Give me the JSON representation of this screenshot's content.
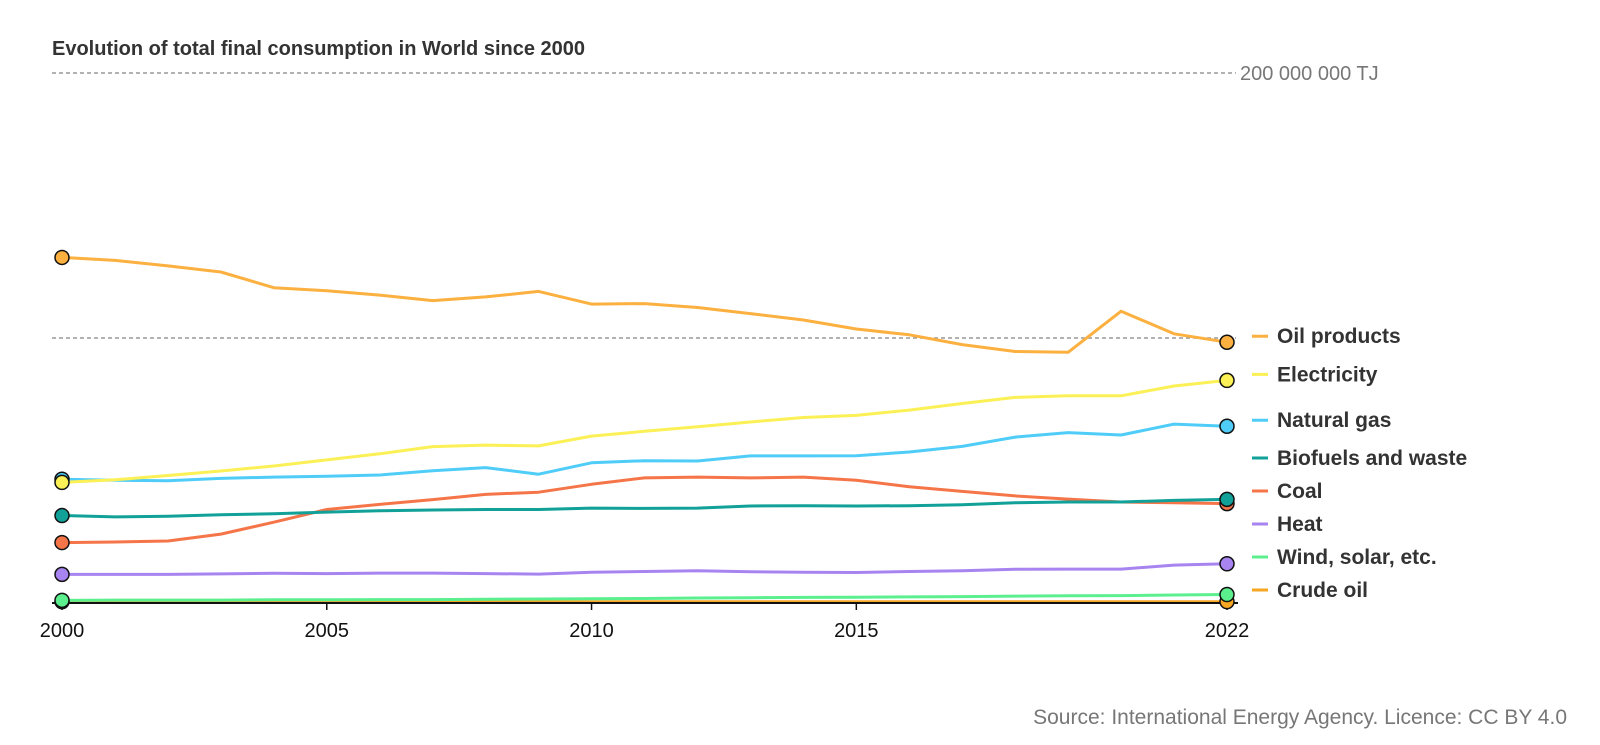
{
  "chart_data": {
    "type": "line",
    "title": "Evolution of total final consumption in World since 2000",
    "source": "Source: International Energy Agency. Licence: CC BY 4.0",
    "x": [
      2000,
      2001,
      2002,
      2003,
      2004,
      2005,
      2006,
      2007,
      2008,
      2009,
      2010,
      2011,
      2012,
      2013,
      2014,
      2015,
      2016,
      2017,
      2018,
      2019,
      2020,
      2021,
      2022
    ],
    "x_ticks": [
      "2000",
      "2005",
      "2010",
      "2015",
      "2022"
    ],
    "ylim": [
      0,
      200000000
    ],
    "grid_labels": [
      "200 000 000 TJ"
    ],
    "grid": true,
    "legend_placement": "right",
    "series": [
      {
        "name": "Oil products",
        "color": "#fbb040",
        "values": [
          130400000,
          129300000,
          127200000,
          124900000,
          119000000,
          117800000,
          116200000,
          114100000,
          115500000,
          117600000,
          112800000,
          113000000,
          111500000,
          109200000,
          106800000,
          103400000,
          101200000,
          97500000,
          94900000,
          94600000,
          110100000,
          101600000,
          98400000
        ]
      },
      {
        "name": "Electricity",
        "color": "#fbf055",
        "values": [
          45500000,
          46500000,
          48100000,
          49800000,
          51700000,
          54000000,
          56300000,
          59000000,
          59600000,
          59300000,
          63000000,
          64800000,
          66500000,
          68300000,
          70000000,
          70800000,
          72800000,
          75300000,
          77600000,
          78200000,
          78200000,
          81900000,
          84000000
        ]
      },
      {
        "name": "Natural gas",
        "color": "#4fcdf8",
        "values": [
          46700000,
          46300000,
          46100000,
          47000000,
          47500000,
          47800000,
          48300000,
          49900000,
          51100000,
          48600000,
          52900000,
          53700000,
          53600000,
          55500000,
          55500000,
          55600000,
          57000000,
          59100000,
          62600000,
          64300000,
          63400000,
          67500000,
          66700000
        ]
      },
      {
        "name": "Biofuels and waste",
        "color": "#11a198",
        "values": [
          33000000,
          32500000,
          32700000,
          33300000,
          33700000,
          34300000,
          34800000,
          35100000,
          35300000,
          35300000,
          35800000,
          35700000,
          35800000,
          36600000,
          36700000,
          36600000,
          36700000,
          37100000,
          37800000,
          38100000,
          38100000,
          38700000,
          39100000
        ]
      },
      {
        "name": "Coal",
        "color": "#f57549",
        "values": [
          22800000,
          23000000,
          23400000,
          26000000,
          30500000,
          35300000,
          37200000,
          39000000,
          41000000,
          41800000,
          44800000,
          47200000,
          47500000,
          47200000,
          47500000,
          46300000,
          43900000,
          42100000,
          40400000,
          39200000,
          38100000,
          37800000,
          37500000
        ]
      },
      {
        "name": "Heat",
        "color": "#a784f0",
        "values": [
          10800000,
          10800000,
          10800000,
          11000000,
          11200000,
          11100000,
          11300000,
          11300000,
          11100000,
          10900000,
          11600000,
          11900000,
          12200000,
          11800000,
          11600000,
          11500000,
          11900000,
          12200000,
          12700000,
          12800000,
          12800000,
          14300000,
          14800000
        ]
      },
      {
        "name": "Wind, solar, etc.",
        "color": "#5cef8e",
        "values": [
          1000000,
          1100000,
          1100000,
          1100000,
          1200000,
          1200000,
          1300000,
          1300000,
          1400000,
          1500000,
          1600000,
          1700000,
          1900000,
          2000000,
          2100000,
          2200000,
          2300000,
          2400000,
          2600000,
          2700000,
          2800000,
          3000000,
          3200000
        ]
      },
      {
        "name": "Crude oil",
        "color": "#f5a623",
        "values": [
          500000,
          500000,
          500000,
          500000,
          500000,
          500000,
          500000,
          500000,
          500000,
          500000,
          500000,
          500000,
          500000,
          500000,
          500000,
          500000,
          500000,
          500000,
          500000,
          500000,
          500000,
          500000,
          500000
        ]
      }
    ]
  }
}
